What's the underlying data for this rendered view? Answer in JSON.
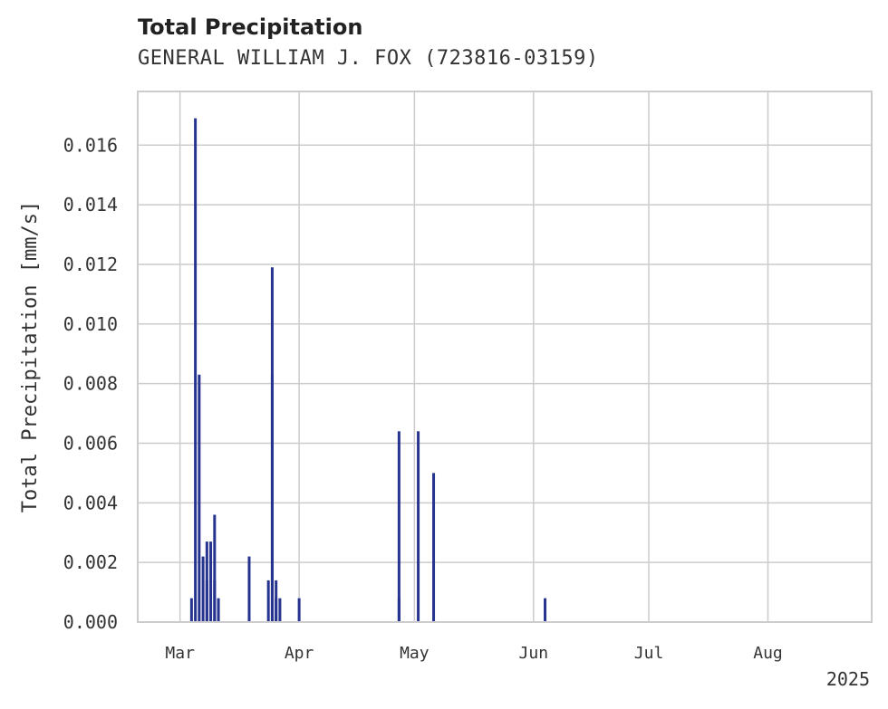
{
  "chart_data": {
    "type": "bar",
    "title": "Total Precipitation",
    "subtitle": "GENERAL WILLIAM J. FOX (723816-03159)",
    "xlabel": "",
    "ylabel": "Total Precipitation [mm/s]",
    "x_year_label": "2025",
    "x_tick_labels": [
      "Mar",
      "Apr",
      "May",
      "Jun",
      "Jul",
      "Aug"
    ],
    "x_tick_dates": [
      "2025-03-01",
      "2025-04-01",
      "2025-05-01",
      "2025-06-01",
      "2025-07-01",
      "2025-08-01"
    ],
    "xlim": [
      "2025-02-18",
      "2025-08-28"
    ],
    "y_tick_labels": [
      "0.000",
      "0.002",
      "0.004",
      "0.006",
      "0.008",
      "0.010",
      "0.012",
      "0.014",
      "0.016"
    ],
    "ylim": [
      0,
      0.0178
    ],
    "grid": true,
    "series": [
      {
        "color": "#26338f",
        "points": [
          {
            "x": "2025-03-04",
            "y": 0.0008
          },
          {
            "x": "2025-03-05",
            "y": 0.0169
          },
          {
            "x": "2025-03-06",
            "y": 0.0083
          },
          {
            "x": "2025-03-07",
            "y": 0.0022
          },
          {
            "x": "2025-03-08",
            "y": 0.0014
          },
          {
            "x": "2025-03-08",
            "y": 0.0027
          },
          {
            "x": "2025-03-09",
            "y": 0.0027
          },
          {
            "x": "2025-03-10",
            "y": 0.0036
          },
          {
            "x": "2025-03-10",
            "y": 0.0014
          },
          {
            "x": "2025-03-11",
            "y": 0.0008
          },
          {
            "x": "2025-03-24",
            "y": 0.0014
          },
          {
            "x": "2025-03-25",
            "y": 0.0083
          },
          {
            "x": "2025-03-25",
            "y": 0.0119
          },
          {
            "x": "2025-03-26",
            "y": 0.0014
          },
          {
            "x": "2025-03-26",
            "y": 0.0008
          },
          {
            "x": "2025-03-27",
            "y": 0.0008
          },
          {
            "x": "2025-03-19",
            "y": 0.0022
          },
          {
            "x": "2025-04-01",
            "y": 0.0008
          },
          {
            "x": "2025-04-27",
            "y": 0.0064
          },
          {
            "x": "2025-04-27",
            "y": 0.0008
          },
          {
            "x": "2025-05-02",
            "y": 0.0064
          },
          {
            "x": "2025-05-06",
            "y": 0.005
          },
          {
            "x": "2025-06-04",
            "y": 0.0008
          }
        ]
      }
    ]
  }
}
